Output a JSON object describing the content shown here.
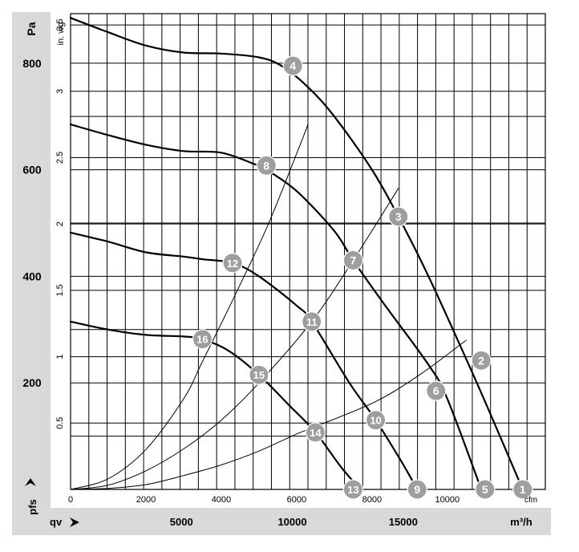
{
  "chart_data": {
    "type": "line",
    "left_axis": {
      "unit_label": "Pa",
      "ticks": [
        "200",
        "400",
        "600",
        "800"
      ],
      "tick_values": [
        200,
        400,
        600,
        800
      ],
      "ylim": [
        0,
        893
      ],
      "variable_label": "pfs"
    },
    "inner_axis": {
      "unit_label": "in. wg",
      "ticks": [
        "0.5",
        "1",
        "1.5",
        "2",
        "2.5",
        "3",
        "3.5"
      ],
      "tick_values": [
        0.5,
        1,
        1.5,
        2,
        2.5,
        3,
        3.5
      ]
    },
    "top_x_axis": {
      "unit_label": "cfm",
      "ticks": [
        "0",
        "2000",
        "4000",
        "6000",
        "8000",
        "10000"
      ],
      "tick_values": [
        0,
        2000,
        4000,
        6000,
        8000,
        10000
      ],
      "xlim": [
        0,
        12600
      ]
    },
    "bottom_x_axis": {
      "variable_label": "qv",
      "unit_label": "m³/h",
      "ticks": [
        "5000",
        "10000",
        "15000"
      ],
      "tick_values": [
        5000,
        10000,
        15000
      ]
    },
    "grid": true,
    "series": [
      {
        "kind": "fan_curve",
        "points_cfm_pa": [
          [
            0,
            885
          ],
          [
            1000,
            858
          ],
          [
            2000,
            833
          ],
          [
            3000,
            820
          ],
          [
            4000,
            818
          ],
          [
            5000,
            811
          ],
          [
            5600,
            795
          ],
          [
            6300,
            755
          ],
          [
            7000,
            700
          ],
          [
            8000,
            600
          ],
          [
            8700,
            512
          ],
          [
            9500,
            400
          ],
          [
            10500,
            245
          ],
          [
            11000,
            165
          ],
          [
            12000,
            0
          ]
        ]
      },
      {
        "kind": "fan_curve",
        "points_cfm_pa": [
          [
            0,
            685
          ],
          [
            1000,
            665
          ],
          [
            2000,
            647
          ],
          [
            3000,
            635
          ],
          [
            4000,
            632
          ],
          [
            4900,
            610
          ],
          [
            5200,
            600
          ],
          [
            6000,
            560
          ],
          [
            7000,
            485
          ],
          [
            7500,
            430
          ],
          [
            8300,
            350
          ],
          [
            9500,
            234
          ],
          [
            10000,
            170
          ],
          [
            10900,
            0
          ]
        ]
      },
      {
        "kind": "fan_curve",
        "points_cfm_pa": [
          [
            0,
            482
          ],
          [
            1000,
            465
          ],
          [
            2000,
            445
          ],
          [
            3000,
            437
          ],
          [
            3500,
            432
          ],
          [
            4300,
            425
          ],
          [
            5000,
            400
          ],
          [
            6000,
            345
          ],
          [
            6400,
            315
          ],
          [
            7400,
            200
          ],
          [
            8100,
            130
          ],
          [
            8800,
            50
          ],
          [
            9200,
            0
          ]
        ]
      },
      {
        "kind": "fan_curve",
        "points_cfm_pa": [
          [
            0,
            315
          ],
          [
            1000,
            300
          ],
          [
            2000,
            290
          ],
          [
            3000,
            287
          ],
          [
            3500,
            282
          ],
          [
            4200,
            260
          ],
          [
            5000,
            215
          ],
          [
            5800,
            158
          ],
          [
            6500,
            107
          ],
          [
            7200,
            40
          ],
          [
            7700,
            0
          ]
        ]
      },
      {
        "kind": "system_curve",
        "points_cfm_pa": [
          [
            0,
            0
          ],
          [
            1000,
            2
          ],
          [
            2000,
            9
          ],
          [
            3000,
            26
          ],
          [
            4000,
            46
          ],
          [
            5000,
            72
          ],
          [
            6000,
            104
          ],
          [
            6500,
            118
          ],
          [
            8100,
            165
          ],
          [
            9300,
            217
          ],
          [
            10500,
            280
          ]
        ]
      },
      {
        "kind": "system_curve",
        "points_cfm_pa": [
          [
            0,
            0
          ],
          [
            1000,
            8
          ],
          [
            2000,
            35
          ],
          [
            3000,
            76
          ],
          [
            4000,
            130
          ],
          [
            5000,
            200
          ],
          [
            6400,
            315
          ],
          [
            7500,
            430
          ],
          [
            8700,
            565
          ]
        ]
      },
      {
        "kind": "system_curve",
        "points_cfm_pa": [
          [
            0,
            0
          ],
          [
            1000,
            20
          ],
          [
            2000,
            75
          ],
          [
            3000,
            170
          ],
          [
            3500,
            240
          ],
          [
            4300,
            355
          ],
          [
            5200,
            490
          ],
          [
            6000,
            630
          ],
          [
            6300,
            685
          ]
        ]
      }
    ],
    "markers": [
      {
        "label": "1",
        "cfm": 12000,
        "pa": 0
      },
      {
        "label": "2",
        "cfm": 10900,
        "pa": 242
      },
      {
        "label": "3",
        "cfm": 8700,
        "pa": 512
      },
      {
        "label": "4",
        "cfm": 5900,
        "pa": 795
      },
      {
        "label": "5",
        "cfm": 11000,
        "pa": 0
      },
      {
        "label": "6",
        "cfm": 9700,
        "pa": 185
      },
      {
        "label": "7",
        "cfm": 7500,
        "pa": 430
      },
      {
        "label": "8",
        "cfm": 5200,
        "pa": 608
      },
      {
        "label": "9",
        "cfm": 9200,
        "pa": 0
      },
      {
        "label": "10",
        "cfm": 8100,
        "pa": 130
      },
      {
        "label": "11",
        "cfm": 6400,
        "pa": 315
      },
      {
        "label": "12",
        "cfm": 4300,
        "pa": 425
      },
      {
        "label": "13",
        "cfm": 7500,
        "pa": 0
      },
      {
        "label": "14",
        "cfm": 6500,
        "pa": 107
      },
      {
        "label": "15",
        "cfm": 5000,
        "pa": 215
      },
      {
        "label": "16",
        "cfm": 3500,
        "pa": 282
      }
    ]
  }
}
